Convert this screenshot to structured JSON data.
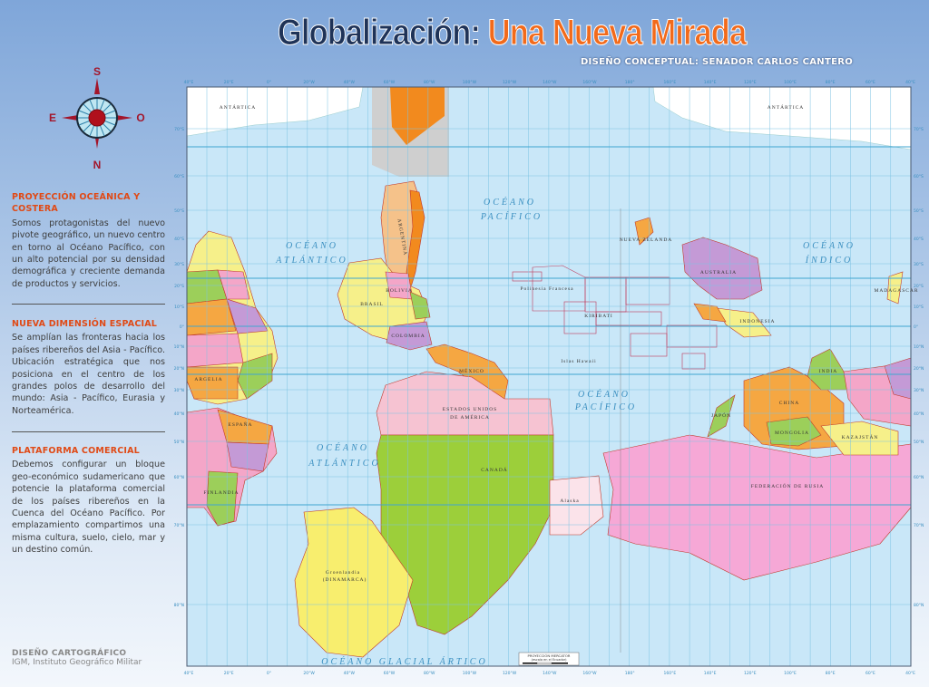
{
  "header": {
    "title_part1": "Globalización:",
    "title_part2": "Una Nueva Mirada",
    "subtitle": "DISEÑO CONCEPTUAL: SENADOR CARLOS CANTERO"
  },
  "compass": {
    "top": "S",
    "left": "E",
    "right": "O",
    "bottom": "N"
  },
  "sections": [
    {
      "heading": "PROYECCIÓN OCEÁNICA Y COSTERA",
      "body": "Somos protagonistas del nuevo pivote geográfico, un nuevo centro en torno al Océano Pacífico, con un alto potencial por su densidad demográfica y creciente demanda de productos y servicios."
    },
    {
      "heading": "NUEVA DIMENSIÓN ESPACIAL",
      "body": "Se amplían las fronteras hacia los países ribereños del Asia - Pacífico. Ubicación estratégica que nos posiciona en el centro de los grandes polos de desarrollo del mundo: Asia - Pacífico, Eurasia y Norteamérica."
    },
    {
      "heading": "PLATAFORMA COMERCIAL",
      "body": "Debemos configurar un bloque geo-económico sudamericano que potencie la plataforma comercial de los países ribereños en la Cuenca del Océano Pacífico. Por emplazamiento compartimos una misma cultura, suelo, cielo, mar y un destino común."
    }
  ],
  "credits": {
    "heading": "DISEÑO CARTOGRÁFICO",
    "body": "IGM, Instituto Geográfico Militar"
  },
  "map": {
    "projection": "upside-down Mercator, Pacific-centered",
    "colors": {
      "ocean": "#c9e7f8",
      "grid": "#7cc3e3",
      "tropic": "#3fa6d0",
      "border": "#c0392b"
    },
    "lon_labels": [
      "40°E",
      "20°E",
      "0°",
      "20°W",
      "40°W",
      "60°W",
      "80°W",
      "100°W",
      "120°W",
      "140°W",
      "160°W",
      "180°",
      "160°E",
      "140°E",
      "120°E",
      "100°E",
      "80°E",
      "60°E",
      "40°E"
    ],
    "lat_labels": [
      "70°S",
      "60°S",
      "50°S",
      "40°S",
      "30°S",
      "20°S",
      "10°S",
      "0°",
      "10°N",
      "20°N",
      "30°N",
      "40°N",
      "50°N",
      "60°N",
      "70°N",
      "80°N"
    ],
    "oceans": {
      "atlantico_1": [
        "OCÉANO",
        "ATLÁNTICO"
      ],
      "pacifico_1": [
        "OCÉANO",
        "PACÍFICO"
      ],
      "indico": [
        "OCÉANO",
        "ÍNDICO"
      ],
      "pacifico_2": [
        "OCÉANO",
        "PACÍFICO"
      ],
      "atlantico_2": [
        "OCÉANO",
        "ATLÁNTICO"
      ],
      "glacial": "OCÉANO GLACIAL ÁRTICO"
    },
    "countries": {
      "antartica_1": "ANTÁRTICA",
      "antartica_2": "ANTÁRTICA",
      "argentina": "ARGENTINA",
      "brasil": "BRASIL",
      "bolivia": "BOLIVIA",
      "colombia": "COLOMBIA",
      "mexico": "MÉXICO",
      "usa_1": "ESTADOS UNIDOS",
      "usa_2": "DE AMÉRICA",
      "canada": "CANADÁ",
      "groenlandia": "Groenlandia",
      "dinamarca": "(DINAMARCA)",
      "alaska": "Alaska",
      "australia": "AUSTRALIA",
      "nueva_zelanda": "NUEVA ZELANDA",
      "indonesia": "INDONESIA",
      "china": "CHINA",
      "mongolia": "MONGOLIA",
      "india": "INDIA",
      "kazajstan": "KAZAJSTÁN",
      "rusia": "FEDERACIÓN DE RUSIA",
      "madagascar": "MADAGASCAR",
      "argelia": "ARGELIA",
      "espana": "ESPAÑA",
      "finlandia": "FINLANDIA",
      "polinesia": "Polinesia Francesa",
      "kiribati": "KIRIBATI",
      "hawaii": "Islas Hawaii",
      "japon": "JAPÓN"
    },
    "legend": {
      "title": "PROYECCIÓN MERCATOR",
      "subtitle": "(escala en el Ecuador)"
    }
  }
}
